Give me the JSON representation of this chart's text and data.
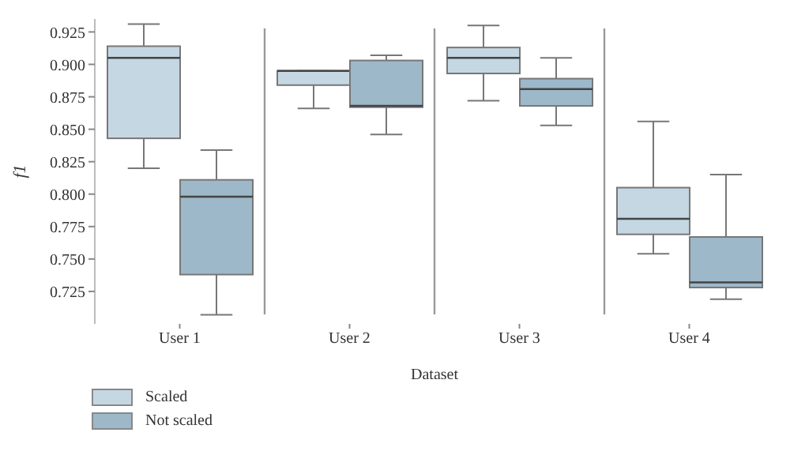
{
  "chart_data": {
    "type": "box",
    "xlabel": "Dataset",
    "ylabel": "f1",
    "categories": [
      "User 1",
      "User 2",
      "User 3",
      "User 4"
    ],
    "ylim": [
      0.7,
      0.935
    ],
    "yticks": [
      {
        "value": 0.725,
        "label": "0.725"
      },
      {
        "value": 0.75,
        "label": "0.750"
      },
      {
        "value": 0.775,
        "label": "0.775"
      },
      {
        "value": 0.8,
        "label": "0.800"
      },
      {
        "value": 0.825,
        "label": "0.825"
      },
      {
        "value": 0.85,
        "label": "0.850"
      },
      {
        "value": 0.875,
        "label": "0.875"
      },
      {
        "value": 0.9,
        "label": "0.900"
      },
      {
        "value": 0.925,
        "label": "0.925"
      }
    ],
    "grid": false,
    "legend": "bottom left",
    "series": [
      {
        "name": "Scaled",
        "color": "#c5d7e2",
        "boxes": [
          {
            "low": 0.82,
            "q1": 0.843,
            "median": 0.905,
            "q3": 0.914,
            "high": 0.931
          },
          {
            "low": 0.866,
            "q1": 0.884,
            "median": 0.895,
            "q3": 0.895,
            "high": 0.895
          },
          {
            "low": 0.872,
            "q1": 0.893,
            "median": 0.905,
            "q3": 0.913,
            "high": 0.93
          },
          {
            "low": 0.754,
            "q1": 0.769,
            "median": 0.781,
            "q3": 0.805,
            "high": 0.856
          }
        ]
      },
      {
        "name": "Not scaled",
        "color": "#9db8c8",
        "boxes": [
          {
            "low": 0.707,
            "q1": 0.738,
            "median": 0.798,
            "q3": 0.811,
            "high": 0.834
          },
          {
            "low": 0.846,
            "q1": 0.867,
            "median": 0.868,
            "q3": 0.903,
            "high": 0.907
          },
          {
            "low": 0.853,
            "q1": 0.868,
            "median": 0.881,
            "q3": 0.889,
            "high": 0.905
          },
          {
            "low": 0.719,
            "q1": 0.728,
            "median": 0.732,
            "q3": 0.767,
            "high": 0.815
          }
        ]
      }
    ]
  }
}
